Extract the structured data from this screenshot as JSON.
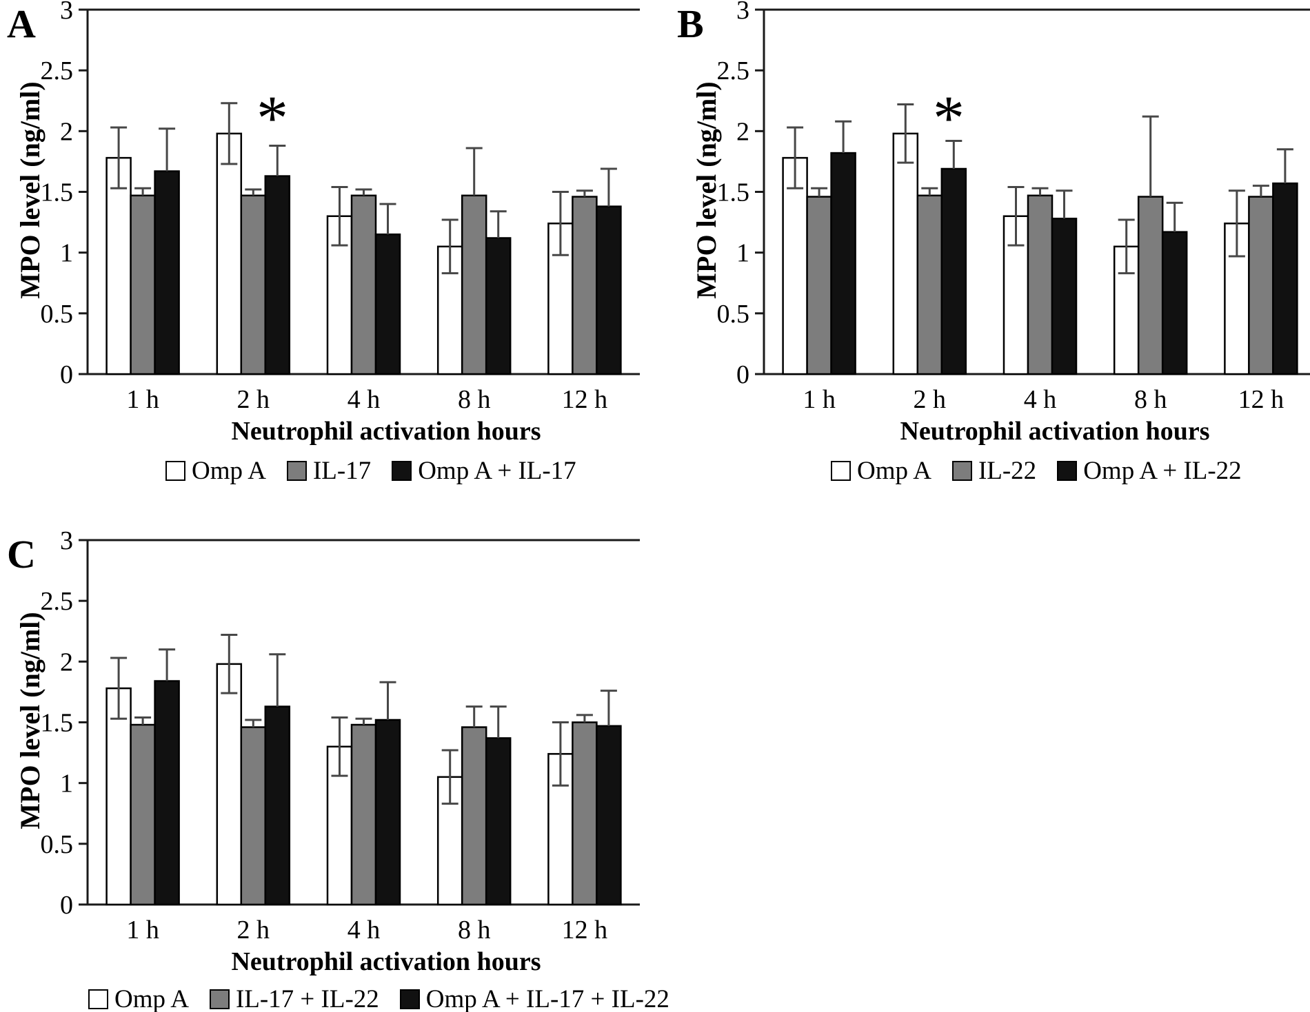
{
  "figure": {
    "background": "#ffffff",
    "panel_count": 3
  },
  "colors": {
    "bar_white": "#ffffff",
    "bar_gray": "#7d7d7d",
    "bar_black": "#111111",
    "bar_border": "#000000",
    "error_bar": "#474747",
    "axis": "#1a1a1a",
    "text": "#000000"
  },
  "chart_data": [
    {
      "type": "bar",
      "panel_label": "A",
      "xlabel": "Neutrophil activation hours",
      "ylabel": "MPO level (ng/ml)",
      "ylim": [
        0,
        3
      ],
      "yticks": [
        0,
        0.5,
        1,
        1.5,
        2,
        2.5,
        3
      ],
      "ytick_labels": [
        "0",
        "0.5",
        "1",
        "1.5",
        "2",
        "2.5",
        "3"
      ],
      "categories": [
        "1 h",
        "2 h",
        "4 h",
        "8 h",
        "12 h"
      ],
      "grid": false,
      "legend_position": "bottom",
      "series": [
        {
          "name": "Omp A",
          "fill": "#ffffff",
          "values": [
            1.78,
            1.98,
            1.3,
            1.05,
            1.24
          ],
          "errors_plus": [
            0.25,
            0.25,
            0.24,
            0.22,
            0.26
          ]
        },
        {
          "name": "IL-17",
          "fill": "#7d7d7d",
          "values": [
            1.47,
            1.47,
            1.47,
            1.47,
            1.46
          ],
          "errors_plus": [
            0.06,
            0.05,
            0.05,
            0.39,
            0.05
          ]
        },
        {
          "name": "Omp A + IL-17",
          "fill": "#111111",
          "values": [
            1.67,
            1.63,
            1.15,
            1.12,
            1.38
          ],
          "errors_plus": [
            0.35,
            0.25,
            0.25,
            0.22,
            0.31
          ]
        }
      ],
      "annotations": [
        {
          "symbol": "*",
          "category": "2 h",
          "series": "Omp A + IL-17"
        }
      ]
    },
    {
      "type": "bar",
      "panel_label": "B",
      "xlabel": "Neutrophil activation hours",
      "ylabel": "MPO level (ng/ml)",
      "ylim": [
        0,
        3
      ],
      "yticks": [
        0,
        0.5,
        1,
        1.5,
        2,
        2.5,
        3
      ],
      "ytick_labels": [
        "0",
        "0.5",
        "1",
        "1.5",
        "2",
        "2.5",
        "3"
      ],
      "categories": [
        "1 h",
        "2 h",
        "4 h",
        "8 h",
        "12 h"
      ],
      "grid": false,
      "legend_position": "bottom",
      "series": [
        {
          "name": "Omp A",
          "fill": "#ffffff",
          "values": [
            1.78,
            1.98,
            1.3,
            1.05,
            1.24
          ],
          "errors_plus": [
            0.25,
            0.24,
            0.24,
            0.22,
            0.27
          ]
        },
        {
          "name": "IL-22",
          "fill": "#7d7d7d",
          "values": [
            1.46,
            1.47,
            1.47,
            1.46,
            1.46
          ],
          "errors_plus": [
            0.07,
            0.06,
            0.06,
            0.66,
            0.09
          ]
        },
        {
          "name": "Omp A + IL-22",
          "fill": "#111111",
          "values": [
            1.82,
            1.69,
            1.28,
            1.17,
            1.57
          ],
          "errors_plus": [
            0.26,
            0.23,
            0.23,
            0.24,
            0.28
          ]
        }
      ],
      "annotations": [
        {
          "symbol": "*",
          "category": "2 h",
          "series": "Omp A + IL-22"
        }
      ]
    },
    {
      "type": "bar",
      "panel_label": "C",
      "xlabel": "Neutrophil activation hours",
      "ylabel": "MPO level (ng/ml)",
      "ylim": [
        0,
        3
      ],
      "yticks": [
        0,
        0.5,
        1,
        1.5,
        2,
        2.5,
        3
      ],
      "ytick_labels": [
        "0",
        "0.5",
        "1",
        "1.5",
        "2",
        "2.5",
        "3"
      ],
      "categories": [
        "1 h",
        "2 h",
        "4 h",
        "8 h",
        "12 h"
      ],
      "grid": false,
      "legend_position": "bottom",
      "series": [
        {
          "name": "Omp A",
          "fill": "#ffffff",
          "values": [
            1.78,
            1.98,
            1.3,
            1.05,
            1.24
          ],
          "errors_plus": [
            0.25,
            0.24,
            0.24,
            0.22,
            0.26
          ]
        },
        {
          "name": "IL-17 + IL-22",
          "fill": "#7d7d7d",
          "values": [
            1.48,
            1.46,
            1.48,
            1.46,
            1.5
          ],
          "errors_plus": [
            0.06,
            0.06,
            0.05,
            0.17,
            0.06
          ]
        },
        {
          "name": "Omp A + IL-17 + IL-22",
          "fill": "#111111",
          "values": [
            1.84,
            1.63,
            1.52,
            1.37,
            1.47
          ],
          "errors_plus": [
            0.26,
            0.43,
            0.31,
            0.26,
            0.29
          ]
        }
      ],
      "annotations": []
    }
  ]
}
